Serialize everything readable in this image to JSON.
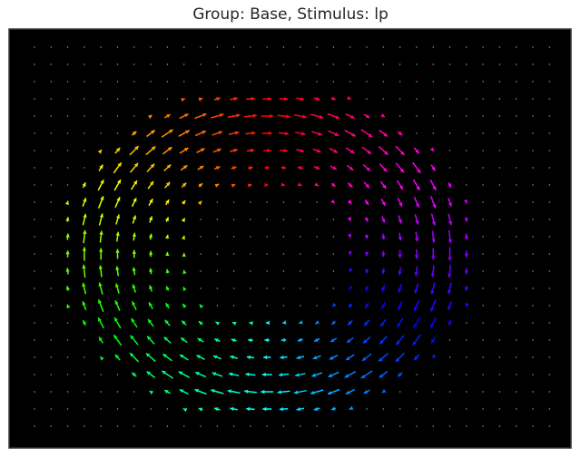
{
  "title": "Group: Base, Stimulus: lp",
  "colors": {
    "background": "#000000",
    "frame": "#3a3a3a",
    "colormap": "hsv"
  },
  "chart_data": {
    "type": "quiver",
    "title": "Group: Base, Stimulus: lp",
    "xlabel": "",
    "ylabel": "",
    "axes_visible": false,
    "grid": false,
    "legend": "none",
    "grid_shape": {
      "cols": 32,
      "rows": 23
    },
    "vortex_center_grid": [
      14,
      12
    ],
    "rotation": "clockwise",
    "ring_radius_grid": [
      4,
      13
    ],
    "peak_radius_grid": 11,
    "color_encoding": "vector direction angle (hsv)"
  }
}
